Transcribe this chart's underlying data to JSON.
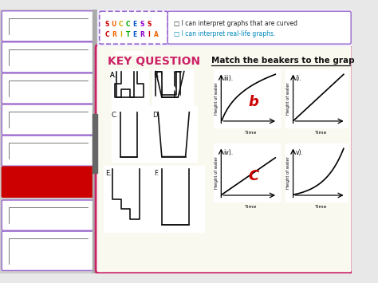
{
  "bg_color": "#e8e8e8",
  "main_bg": "#faf9f0",
  "sidebar_bg": "#cccccc",
  "border_color_pink": "#cc2266",
  "border_color_purple": "#9966cc",
  "success_bg": "#ffffff",
  "criteria_text1": "I can interpret graphs that are curved",
  "criteria_text2": "I can interpret real-life graphs.",
  "key_question_text": "KEY QUESTION",
  "match_text": "Match the beakers to the grap",
  "answer_b": "b",
  "answer_c": "C",
  "answer_color": "#cc0000",
  "black": "#111111",
  "grid_color": "#ccdde8",
  "thumb_border": "#9966cc",
  "thumb_active_border": "#cc0000",
  "thumb_active_fill": "#cc0000",
  "success_letter_colors": [
    "#cc0000",
    "#ee6600",
    "#ccaa00",
    "#00aa00",
    "#0055cc",
    "#8800cc"
  ],
  "top_bar_bg": "#f0efff"
}
